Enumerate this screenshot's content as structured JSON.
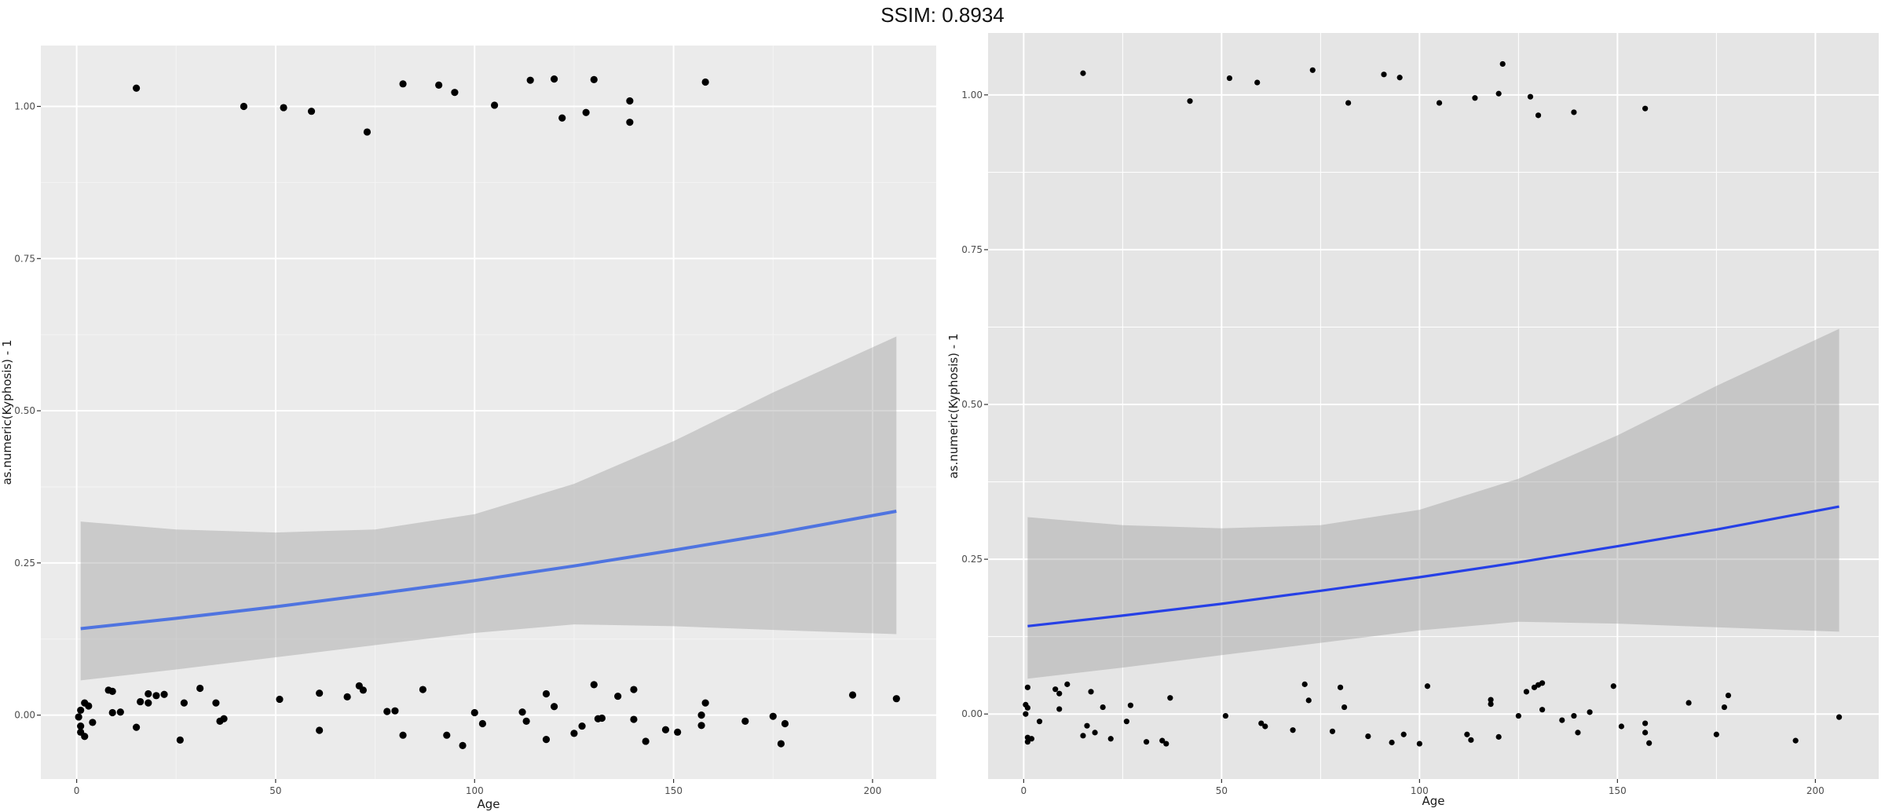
{
  "header": {
    "title": "SSIM: 0.8934"
  },
  "chart_data": [
    {
      "type": "scatter",
      "xlabel": "Age",
      "ylabel": "as.numeric(Kyphosis) - 1",
      "xlim": [
        -9,
        216
      ],
      "ylim": [
        -0.105,
        1.1
      ],
      "xticks": [
        0,
        50,
        100,
        150,
        200
      ],
      "xtick_labels": [
        "0",
        "50",
        "100",
        "150",
        "200"
      ],
      "yticks": [
        0,
        0.25,
        0.5,
        0.75,
        1
      ],
      "ytick_labels": [
        "0.00",
        "0.25",
        "0.50",
        "0.75",
        "1.00"
      ],
      "grid": true,
      "colors": {
        "panel": "#ebebeb",
        "grid_major": "#ffffff",
        "grid_minor": "#f4f4f4",
        "points": "#000000",
        "fit_line": "#4f74e0",
        "ribbon": "#999999"
      },
      "points": [
        {
          "x": 15,
          "y": 1.03
        },
        {
          "x": 42,
          "y": 1.0
        },
        {
          "x": 52,
          "y": 0.998
        },
        {
          "x": 59,
          "y": 0.992
        },
        {
          "x": 73,
          "y": 0.958
        },
        {
          "x": 82,
          "y": 1.037
        },
        {
          "x": 91,
          "y": 1.035
        },
        {
          "x": 95,
          "y": 1.023
        },
        {
          "x": 105,
          "y": 1.002
        },
        {
          "x": 114,
          "y": 1.043
        },
        {
          "x": 120,
          "y": 1.045
        },
        {
          "x": 122,
          "y": 0.981
        },
        {
          "x": 128,
          "y": 0.99
        },
        {
          "x": 130,
          "y": 1.044
        },
        {
          "x": 139,
          "y": 1.009
        },
        {
          "x": 139,
          "y": 0.974
        },
        {
          "x": 158,
          "y": 1.04
        },
        {
          "x": 0.5,
          "y": -0.003
        },
        {
          "x": 1,
          "y": 0.008
        },
        {
          "x": 1,
          "y": -0.018
        },
        {
          "x": 1,
          "y": -0.028
        },
        {
          "x": 2,
          "y": 0.02
        },
        {
          "x": 2,
          "y": -0.035
        },
        {
          "x": 3,
          "y": 0.015
        },
        {
          "x": 4,
          "y": -0.012
        },
        {
          "x": 8,
          "y": 0.041
        },
        {
          "x": 9,
          "y": 0.039
        },
        {
          "x": 9,
          "y": 0.004
        },
        {
          "x": 11,
          "y": 0.005
        },
        {
          "x": 15,
          "y": -0.02
        },
        {
          "x": 16,
          "y": 0.022
        },
        {
          "x": 18,
          "y": 0.02
        },
        {
          "x": 18,
          "y": 0.035
        },
        {
          "x": 20,
          "y": 0.032
        },
        {
          "x": 22,
          "y": 0.034
        },
        {
          "x": 26,
          "y": -0.041
        },
        {
          "x": 27,
          "y": 0.02
        },
        {
          "x": 31,
          "y": 0.044
        },
        {
          "x": 35,
          "y": 0.02
        },
        {
          "x": 36,
          "y": -0.01
        },
        {
          "x": 37,
          "y": -0.006
        },
        {
          "x": 51,
          "y": 0.026
        },
        {
          "x": 61,
          "y": -0.025
        },
        {
          "x": 61,
          "y": 0.036
        },
        {
          "x": 68,
          "y": 0.03
        },
        {
          "x": 71,
          "y": 0.048
        },
        {
          "x": 72,
          "y": 0.041
        },
        {
          "x": 78,
          "y": 0.006
        },
        {
          "x": 80,
          "y": 0.007
        },
        {
          "x": 82,
          "y": -0.033
        },
        {
          "x": 87,
          "y": 0.042
        },
        {
          "x": 93,
          "y": -0.033
        },
        {
          "x": 97,
          "y": -0.05
        },
        {
          "x": 100,
          "y": 0.004
        },
        {
          "x": 102,
          "y": -0.014
        },
        {
          "x": 112,
          "y": 0.005
        },
        {
          "x": 113,
          "y": -0.01
        },
        {
          "x": 118,
          "y": -0.04
        },
        {
          "x": 118,
          "y": 0.035
        },
        {
          "x": 120,
          "y": 0.014
        },
        {
          "x": 125,
          "y": -0.03
        },
        {
          "x": 127,
          "y": -0.018
        },
        {
          "x": 130,
          "y": 0.05
        },
        {
          "x": 131,
          "y": -0.006
        },
        {
          "x": 132,
          "y": -0.005
        },
        {
          "x": 136,
          "y": 0.031
        },
        {
          "x": 140,
          "y": 0.042
        },
        {
          "x": 140,
          "y": -0.007
        },
        {
          "x": 143,
          "y": -0.043
        },
        {
          "x": 148,
          "y": -0.024
        },
        {
          "x": 151,
          "y": -0.028
        },
        {
          "x": 157,
          "y": 0.0
        },
        {
          "x": 157,
          "y": -0.017
        },
        {
          "x": 158,
          "y": 0.02
        },
        {
          "x": 168,
          "y": -0.01
        },
        {
          "x": 175,
          "y": -0.002
        },
        {
          "x": 177,
          "y": -0.047
        },
        {
          "x": 178,
          "y": -0.014
        },
        {
          "x": 195,
          "y": 0.033
        },
        {
          "x": 206,
          "y": 0.027
        }
      ],
      "fit": {
        "x": [
          1,
          25,
          50,
          75,
          100,
          125,
          150,
          175,
          206
        ],
        "y": [
          0.142,
          0.159,
          0.178,
          0.199,
          0.221,
          0.245,
          0.271,
          0.298,
          0.335
        ],
        "lower": [
          0.057,
          0.075,
          0.095,
          0.115,
          0.135,
          0.149,
          0.146,
          0.14,
          0.133
        ],
        "upper": [
          0.318,
          0.305,
          0.3,
          0.305,
          0.33,
          0.38,
          0.45,
          0.53,
          0.622
        ]
      }
    },
    {
      "type": "scatter",
      "xlabel": "Age",
      "ylabel": "as.numeric(Kyphosis) - 1",
      "xlim": [
        -9,
        216
      ],
      "ylim": [
        -0.105,
        1.1
      ],
      "xticks": [
        0,
        50,
        100,
        150,
        200
      ],
      "xtick_labels": [
        "0",
        "50",
        "100",
        "150",
        "200"
      ],
      "yticks": [
        0,
        0.25,
        0.5,
        0.75,
        1
      ],
      "ytick_labels": [
        "0.00",
        "0.25",
        "0.50",
        "0.75",
        "1.00"
      ],
      "grid": true,
      "colors": {
        "panel": "#e5e5e5",
        "grid_major": "#ffffff",
        "grid_minor": "#ffffff",
        "points": "#000000",
        "fit_line": "#2640e6",
        "ribbon": "#999999"
      },
      "points": [
        {
          "x": 15,
          "y": 1.035
        },
        {
          "x": 42,
          "y": 0.99
        },
        {
          "x": 52,
          "y": 1.027
        },
        {
          "x": 59,
          "y": 1.02
        },
        {
          "x": 73,
          "y": 1.04
        },
        {
          "x": 82,
          "y": 0.987
        },
        {
          "x": 91,
          "y": 1.033
        },
        {
          "x": 95,
          "y": 1.028
        },
        {
          "x": 105,
          "y": 0.987
        },
        {
          "x": 114,
          "y": 0.995
        },
        {
          "x": 120,
          "y": 1.002
        },
        {
          "x": 121,
          "y": 1.05
        },
        {
          "x": 128,
          "y": 0.997
        },
        {
          "x": 130,
          "y": 0.967
        },
        {
          "x": 139,
          "y": 0.972
        },
        {
          "x": 157,
          "y": 0.978
        },
        {
          "x": 0.5,
          "y": 0.015
        },
        {
          "x": 0.5,
          "y": 0.0
        },
        {
          "x": 1,
          "y": 0.043
        },
        {
          "x": 1,
          "y": 0.01
        },
        {
          "x": 1,
          "y": -0.045
        },
        {
          "x": 1,
          "y": -0.038
        },
        {
          "x": 2,
          "y": -0.04
        },
        {
          "x": 4,
          "y": -0.012
        },
        {
          "x": 8,
          "y": 0.04
        },
        {
          "x": 9,
          "y": 0.008
        },
        {
          "x": 9,
          "y": 0.033
        },
        {
          "x": 11,
          "y": 0.048
        },
        {
          "x": 15,
          "y": -0.035
        },
        {
          "x": 16,
          "y": -0.019
        },
        {
          "x": 17,
          "y": 0.036
        },
        {
          "x": 18,
          "y": -0.03
        },
        {
          "x": 20,
          "y": 0.011
        },
        {
          "x": 22,
          "y": -0.04
        },
        {
          "x": 26,
          "y": -0.012
        },
        {
          "x": 27,
          "y": 0.014
        },
        {
          "x": 31,
          "y": -0.045
        },
        {
          "x": 35,
          "y": -0.043
        },
        {
          "x": 36,
          "y": -0.048
        },
        {
          "x": 37,
          "y": 0.026
        },
        {
          "x": 51,
          "y": -0.003
        },
        {
          "x": 60,
          "y": -0.015
        },
        {
          "x": 61,
          "y": -0.02
        },
        {
          "x": 68,
          "y": -0.026
        },
        {
          "x": 71,
          "y": 0.048
        },
        {
          "x": 72,
          "y": 0.022
        },
        {
          "x": 78,
          "y": -0.028
        },
        {
          "x": 80,
          "y": 0.043
        },
        {
          "x": 81,
          "y": 0.011
        },
        {
          "x": 87,
          "y": -0.036
        },
        {
          "x": 93,
          "y": -0.046
        },
        {
          "x": 96,
          "y": -0.033
        },
        {
          "x": 100,
          "y": -0.048
        },
        {
          "x": 102,
          "y": 0.045
        },
        {
          "x": 112,
          "y": -0.033
        },
        {
          "x": 113,
          "y": -0.042
        },
        {
          "x": 118,
          "y": 0.023
        },
        {
          "x": 118,
          "y": 0.016
        },
        {
          "x": 120,
          "y": -0.037
        },
        {
          "x": 125,
          "y": -0.003
        },
        {
          "x": 127,
          "y": 0.036
        },
        {
          "x": 129,
          "y": 0.043
        },
        {
          "x": 130,
          "y": 0.047
        },
        {
          "x": 131,
          "y": 0.007
        },
        {
          "x": 131,
          "y": 0.05
        },
        {
          "x": 136,
          "y": -0.01
        },
        {
          "x": 139,
          "y": -0.003
        },
        {
          "x": 140,
          "y": -0.03
        },
        {
          "x": 143,
          "y": 0.003
        },
        {
          "x": 149,
          "y": 0.045
        },
        {
          "x": 151,
          "y": -0.02
        },
        {
          "x": 157,
          "y": -0.015
        },
        {
          "x": 157,
          "y": -0.03
        },
        {
          "x": 158,
          "y": -0.047
        },
        {
          "x": 168,
          "y": 0.018
        },
        {
          "x": 175,
          "y": -0.033
        },
        {
          "x": 177,
          "y": 0.011
        },
        {
          "x": 178,
          "y": 0.03
        },
        {
          "x": 195,
          "y": -0.043
        },
        {
          "x": 206,
          "y": -0.005
        }
      ],
      "fit": {
        "x": [
          1,
          25,
          50,
          75,
          100,
          125,
          150,
          175,
          206
        ],
        "y": [
          0.142,
          0.159,
          0.178,
          0.199,
          0.221,
          0.245,
          0.271,
          0.298,
          0.335
        ],
        "lower": [
          0.057,
          0.075,
          0.095,
          0.115,
          0.135,
          0.149,
          0.146,
          0.14,
          0.133
        ],
        "upper": [
          0.318,
          0.305,
          0.3,
          0.305,
          0.33,
          0.38,
          0.45,
          0.53,
          0.622
        ]
      }
    }
  ]
}
